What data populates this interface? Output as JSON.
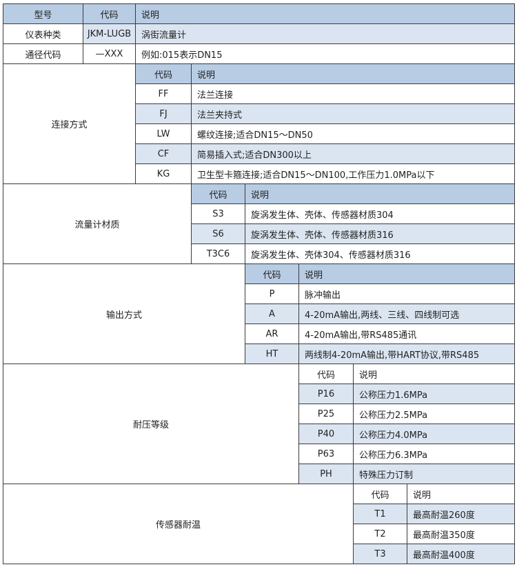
{
  "header": {
    "model": "型号",
    "code": "代码",
    "desc": "说明"
  },
  "rows": [
    {
      "label": "仪表种类",
      "code": "JKM-LUGB",
      "desc": "涡街流量计"
    },
    {
      "label": "通径代码",
      "code": "—XXX",
      "desc": "例如:015表示DN15"
    }
  ],
  "sections": [
    {
      "label": "连接方式",
      "code_header": "代码",
      "desc_header": "说明",
      "items": [
        {
          "code": "FF",
          "desc": "法兰连接"
        },
        {
          "code": "FJ",
          "desc": "法兰夹持式"
        },
        {
          "code": "LW",
          "desc": "螺纹连接;适合DN15～DN50"
        },
        {
          "code": "CF",
          "desc": "简易插入式;适合DN300以上"
        },
        {
          "code": "KG",
          "desc": "卫生型卡箍连接;适合DN15～DN100,工作压力1.0MPa以下"
        }
      ]
    },
    {
      "label": "流量计材质",
      "code_header": "代码",
      "desc_header": "说明",
      "items": [
        {
          "code": "S3",
          "desc": "旋涡发生体、壳体、传感器材质304"
        },
        {
          "code": "S6",
          "desc": "旋涡发生体、壳体、传感器材质316"
        },
        {
          "code": "T3C6",
          "desc": "旋涡发生体、壳体304、传感器材质316"
        }
      ]
    },
    {
      "label": "输出方式",
      "code_header": "代码",
      "desc_header": "说明",
      "items": [
        {
          "code": "P",
          "desc": "脉冲输出"
        },
        {
          "code": "A",
          "desc": "4-20mA输出,两线、三线、四线制可选"
        },
        {
          "code": "AR",
          "desc": "4-20mA输出,带RS485通讯"
        },
        {
          "code": "HT",
          "desc": "两线制4-20mA输出,带HART协议,带RS485"
        }
      ]
    },
    {
      "label": "耐压等级",
      "code_header": "代码",
      "desc_header": "说明",
      "items": [
        {
          "code": "P16",
          "desc": "公称压力1.6MPa"
        },
        {
          "code": "P25",
          "desc": "公称压力2.5MPa"
        },
        {
          "code": "P40",
          "desc": "公称压力4.0MPa"
        },
        {
          "code": "P63",
          "desc": "公称压力6.3MPa"
        },
        {
          "code": "PH",
          "desc": "特殊压力订制"
        }
      ]
    },
    {
      "label": "传感器耐温",
      "code_header": "代码",
      "desc_header": "说明",
      "items": [
        {
          "code": "T1",
          "desc": "最高耐温260度"
        },
        {
          "code": "T2",
          "desc": "最高耐温350度"
        },
        {
          "code": "T3",
          "desc": "最高耐温400度"
        }
      ]
    }
  ],
  "colors": {
    "header_blue": "#b8cce4",
    "light_blue": "#dbe5f1",
    "border": "#3a3a3a"
  }
}
